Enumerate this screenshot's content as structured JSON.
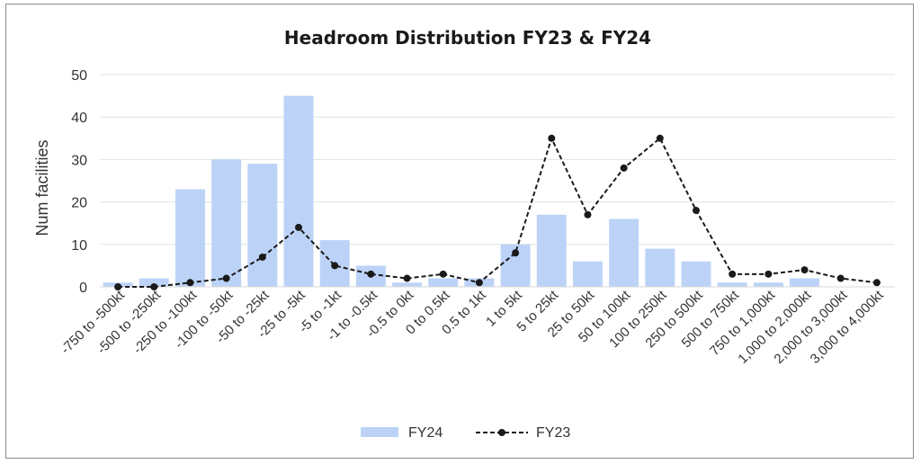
{
  "chart_data": {
    "type": "bar",
    "title": "Headroom Distribution FY23 & FY24",
    "xlabel": "",
    "ylabel": "Num facilities",
    "ylim": [
      0,
      50
    ],
    "yticks": [
      "0",
      "10",
      "20",
      "30",
      "40",
      "50"
    ],
    "categories": [
      "-750 to -500kt",
      "-500 to -250kt",
      "-250 to -100kt",
      "-100 to -50kt",
      "-50 to -25kt",
      "-25 to -5kt",
      "-5 to -1kt",
      "-1 to -0.5kt",
      "-0.5 to 0kt",
      "0 to 0.5kt",
      "0.5 to 1kt",
      "1 to 5kt",
      "5 to 25kt",
      "25 to 50kt",
      "50 to 100kt",
      "100 to 250kt",
      "250 to 500kt",
      "500 to 750kt",
      "750 to 1,000kt",
      "1,000 to 2,000kt",
      "2,000 to 3,000kt",
      "3,000 to 4,000kt"
    ],
    "series": [
      {
        "name": "FY24",
        "kind": "bar",
        "color": "#bcd3f7",
        "values": [
          1,
          2,
          23,
          30,
          29,
          45,
          11,
          5,
          1,
          2,
          2,
          10,
          17,
          6,
          16,
          9,
          6,
          1,
          1,
          2,
          0,
          0
        ]
      },
      {
        "name": "FY23",
        "kind": "line",
        "color": "#1a1a1a",
        "values": [
          0,
          0,
          1,
          2,
          7,
          14,
          5,
          3,
          2,
          3,
          1,
          8,
          35,
          17,
          28,
          35,
          18,
          3,
          3,
          4,
          2,
          1
        ]
      }
    ],
    "legend": {
      "position": "bottom",
      "entries": [
        "FY24",
        "FY23"
      ]
    },
    "grid": true
  }
}
